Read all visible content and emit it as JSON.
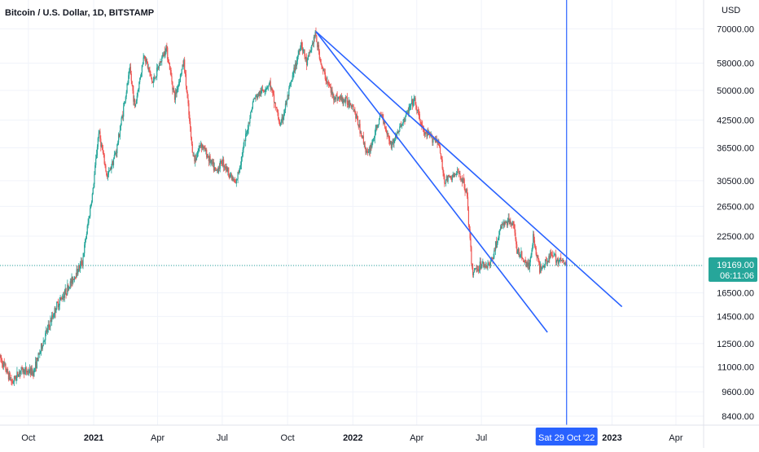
{
  "title": "Bitcoin / U.S. Dollar, 1D, BITSTAMP",
  "currency_label": "USD",
  "price_label": "19169.00",
  "countdown_label": "06:11:06",
  "crosshair_date_label": "Sat 29 Oct '22",
  "colors": {
    "up": "#26a69a",
    "down": "#ef5350",
    "trendline": "#2962ff",
    "price_tag": "#26a69a",
    "crosshair_tag": "#2962ff",
    "grid": "#f0f3fa",
    "axis_text": "#131722"
  },
  "chart_data": {
    "type": "candlestick",
    "y_scale": "log",
    "ylim": [
      8000,
      82000
    ],
    "xlim": [
      "2020-08-22",
      "2023-05-10"
    ],
    "y_ticks": [
      8400,
      9600,
      11000,
      12500,
      14500,
      16500,
      19169,
      22500,
      26500,
      30500,
      36500,
      42500,
      50000,
      58000,
      70000
    ],
    "y_tick_labels": [
      "8400.00",
      "9600.00",
      "11000.00",
      "12500.00",
      "14500.00",
      "16500.00",
      "",
      "22500.00",
      "26500.00",
      "30500.00",
      "36500.00",
      "42500.00",
      "50000.00",
      "58000.00",
      "70000.00"
    ],
    "x_ticks": [
      {
        "date": "2020-10-01",
        "label": "Oct",
        "bold": false
      },
      {
        "date": "2021-01-01",
        "label": "2021",
        "bold": true
      },
      {
        "date": "2021-04-01",
        "label": "Apr",
        "bold": false
      },
      {
        "date": "2021-07-01",
        "label": "Jul",
        "bold": false
      },
      {
        "date": "2021-10-01",
        "label": "Oct",
        "bold": false
      },
      {
        "date": "2022-01-01",
        "label": "2022",
        "bold": true
      },
      {
        "date": "2022-04-01",
        "label": "Apr",
        "bold": false
      },
      {
        "date": "2022-07-01",
        "label": "Jul",
        "bold": false
      },
      {
        "date": "2023-01-01",
        "label": "2023",
        "bold": true
      },
      {
        "date": "2023-04-01",
        "label": "Apr",
        "bold": false
      }
    ],
    "anchors": [
      [
        "2020-08-22",
        11600
      ],
      [
        "2020-09-08",
        10100
      ],
      [
        "2020-09-20",
        10800
      ],
      [
        "2020-10-08",
        10700
      ],
      [
        "2020-10-25",
        13100
      ],
      [
        "2020-11-10",
        15400
      ],
      [
        "2020-11-26",
        17000
      ],
      [
        "2020-12-16",
        19600
      ],
      [
        "2020-12-31",
        29000
      ],
      [
        "2021-01-08",
        40000
      ],
      [
        "2021-01-20",
        31000
      ],
      [
        "2021-02-02",
        36000
      ],
      [
        "2021-02-21",
        56000
      ],
      [
        "2021-02-28",
        45500
      ],
      [
        "2021-03-13",
        61000
      ],
      [
        "2021-03-25",
        52000
      ],
      [
        "2021-04-13",
        63500
      ],
      [
        "2021-04-25",
        48000
      ],
      [
        "2021-05-08",
        58500
      ],
      [
        "2021-05-19",
        37000
      ],
      [
        "2021-05-23",
        34000
      ],
      [
        "2021-06-01",
        37500
      ],
      [
        "2021-06-22",
        32000
      ],
      [
        "2021-07-01",
        34000
      ],
      [
        "2021-07-20",
        29800
      ],
      [
        "2021-08-14",
        47500
      ],
      [
        "2021-09-06",
        52000
      ],
      [
        "2021-09-21",
        41000
      ],
      [
        "2021-10-20",
        65000
      ],
      [
        "2021-10-28",
        58000
      ],
      [
        "2021-11-09",
        68000
      ],
      [
        "2021-11-19",
        56000
      ],
      [
        "2021-12-04",
        48500
      ],
      [
        "2021-12-31",
        46500
      ],
      [
        "2022-01-22",
        35000
      ],
      [
        "2022-02-10",
        44000
      ],
      [
        "2022-02-24",
        37000
      ],
      [
        "2022-03-28",
        47500
      ],
      [
        "2022-04-11",
        39500
      ],
      [
        "2022-05-01",
        38000
      ],
      [
        "2022-05-10",
        30500
      ],
      [
        "2022-05-31",
        31800
      ],
      [
        "2022-06-10",
        29000
      ],
      [
        "2022-06-18",
        18500
      ],
      [
        "2022-07-01",
        19300
      ],
      [
        "2022-07-13",
        19200
      ],
      [
        "2022-07-30",
        24000
      ],
      [
        "2022-08-15",
        24500
      ],
      [
        "2022-08-19",
        21000
      ],
      [
        "2022-09-06",
        19000
      ],
      [
        "2022-09-12",
        22400
      ],
      [
        "2022-09-21",
        18800
      ],
      [
        "2022-10-06",
        20300
      ],
      [
        "2022-10-25",
        19500
      ],
      [
        "2022-10-29",
        19169
      ]
    ],
    "trendlines": [
      {
        "from": [
          "2021-11-10",
          69000
        ],
        "to": [
          "2023-01-15",
          15300
        ]
      },
      {
        "from": [
          "2021-11-10",
          69000
        ],
        "to": [
          "2022-10-02",
          13300
        ]
      }
    ],
    "current_price": 19169,
    "crosshair_date": "2022-10-29"
  }
}
